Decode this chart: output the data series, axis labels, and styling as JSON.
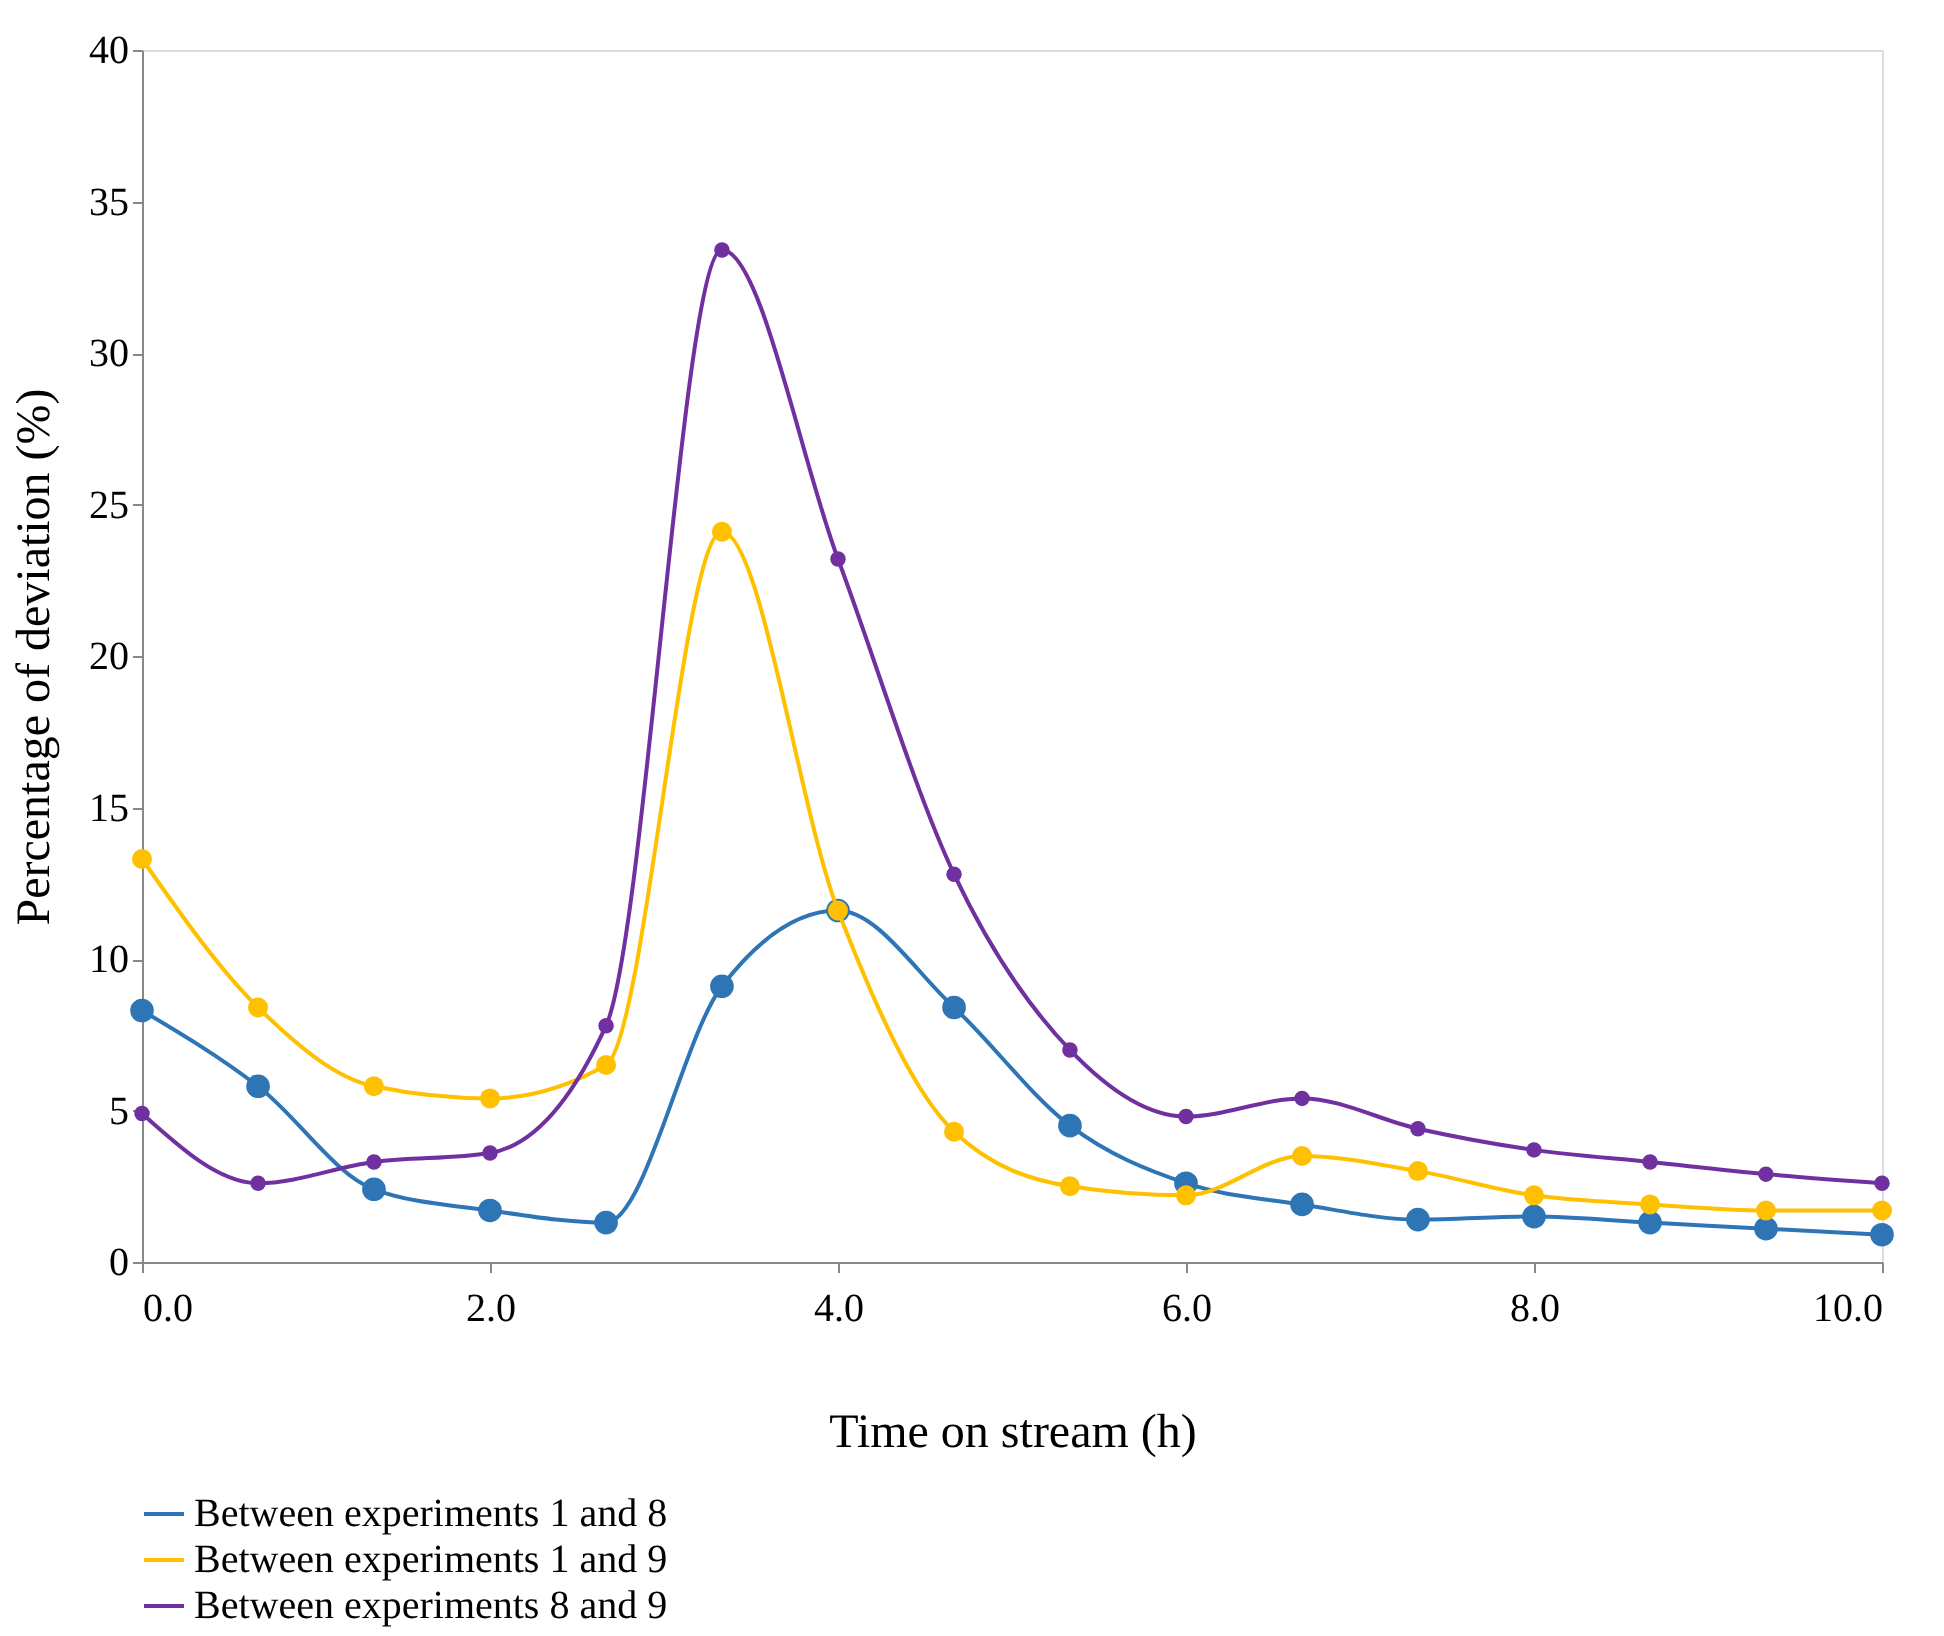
{
  "chart_data": {
    "type": "line",
    "xlabel": "Time on stream (h)",
    "ylabel": "Percentage of deviation (%)",
    "x": [
      0,
      0.667,
      1.333,
      2,
      2.667,
      3.333,
      4,
      4.667,
      5.333,
      6,
      6.667,
      7.333,
      8,
      8.667,
      9.333,
      10
    ],
    "series": [
      {
        "name": "Between experiments 1 and 8",
        "color": "#2e75b6",
        "values": [
          8.3,
          5.8,
          2.4,
          1.7,
          1.3,
          9.1,
          11.6,
          8.4,
          4.5,
          2.6,
          1.9,
          1.4,
          1.5,
          1.3,
          1.1,
          0.9
        ]
      },
      {
        "name": "Between experiments 1 and 9",
        "color": "#ffc000",
        "values": [
          13.3,
          8.4,
          5.8,
          5.4,
          6.5,
          24.1,
          11.6,
          4.3,
          2.5,
          2.2,
          3.5,
          3.0,
          2.2,
          1.9,
          1.7,
          1.7
        ]
      },
      {
        "name": "Between experiments 8 and 9",
        "color": "#7030a0",
        "values": [
          4.9,
          2.6,
          3.3,
          3.6,
          7.8,
          33.4,
          23.2,
          12.8,
          7.0,
          4.8,
          5.4,
          4.4,
          3.7,
          3.3,
          2.9,
          2.6
        ]
      }
    ],
    "xlim": [
      0,
      10
    ],
    "xticks": [
      {
        "value": 0,
        "label": "0.0"
      },
      {
        "value": 2,
        "label": "2.0"
      },
      {
        "value": 4,
        "label": "4.0"
      },
      {
        "value": 6,
        "label": "6.0"
      },
      {
        "value": 8,
        "label": "8.0"
      },
      {
        "value": 10,
        "label": "10.0"
      }
    ],
    "ylim": [
      0,
      40
    ],
    "yticks": [
      0,
      5,
      10,
      15,
      20,
      25,
      30,
      35,
      40
    ],
    "grid": false,
    "legend": "bottom",
    "marker": "circle",
    "line_style": "solid"
  }
}
